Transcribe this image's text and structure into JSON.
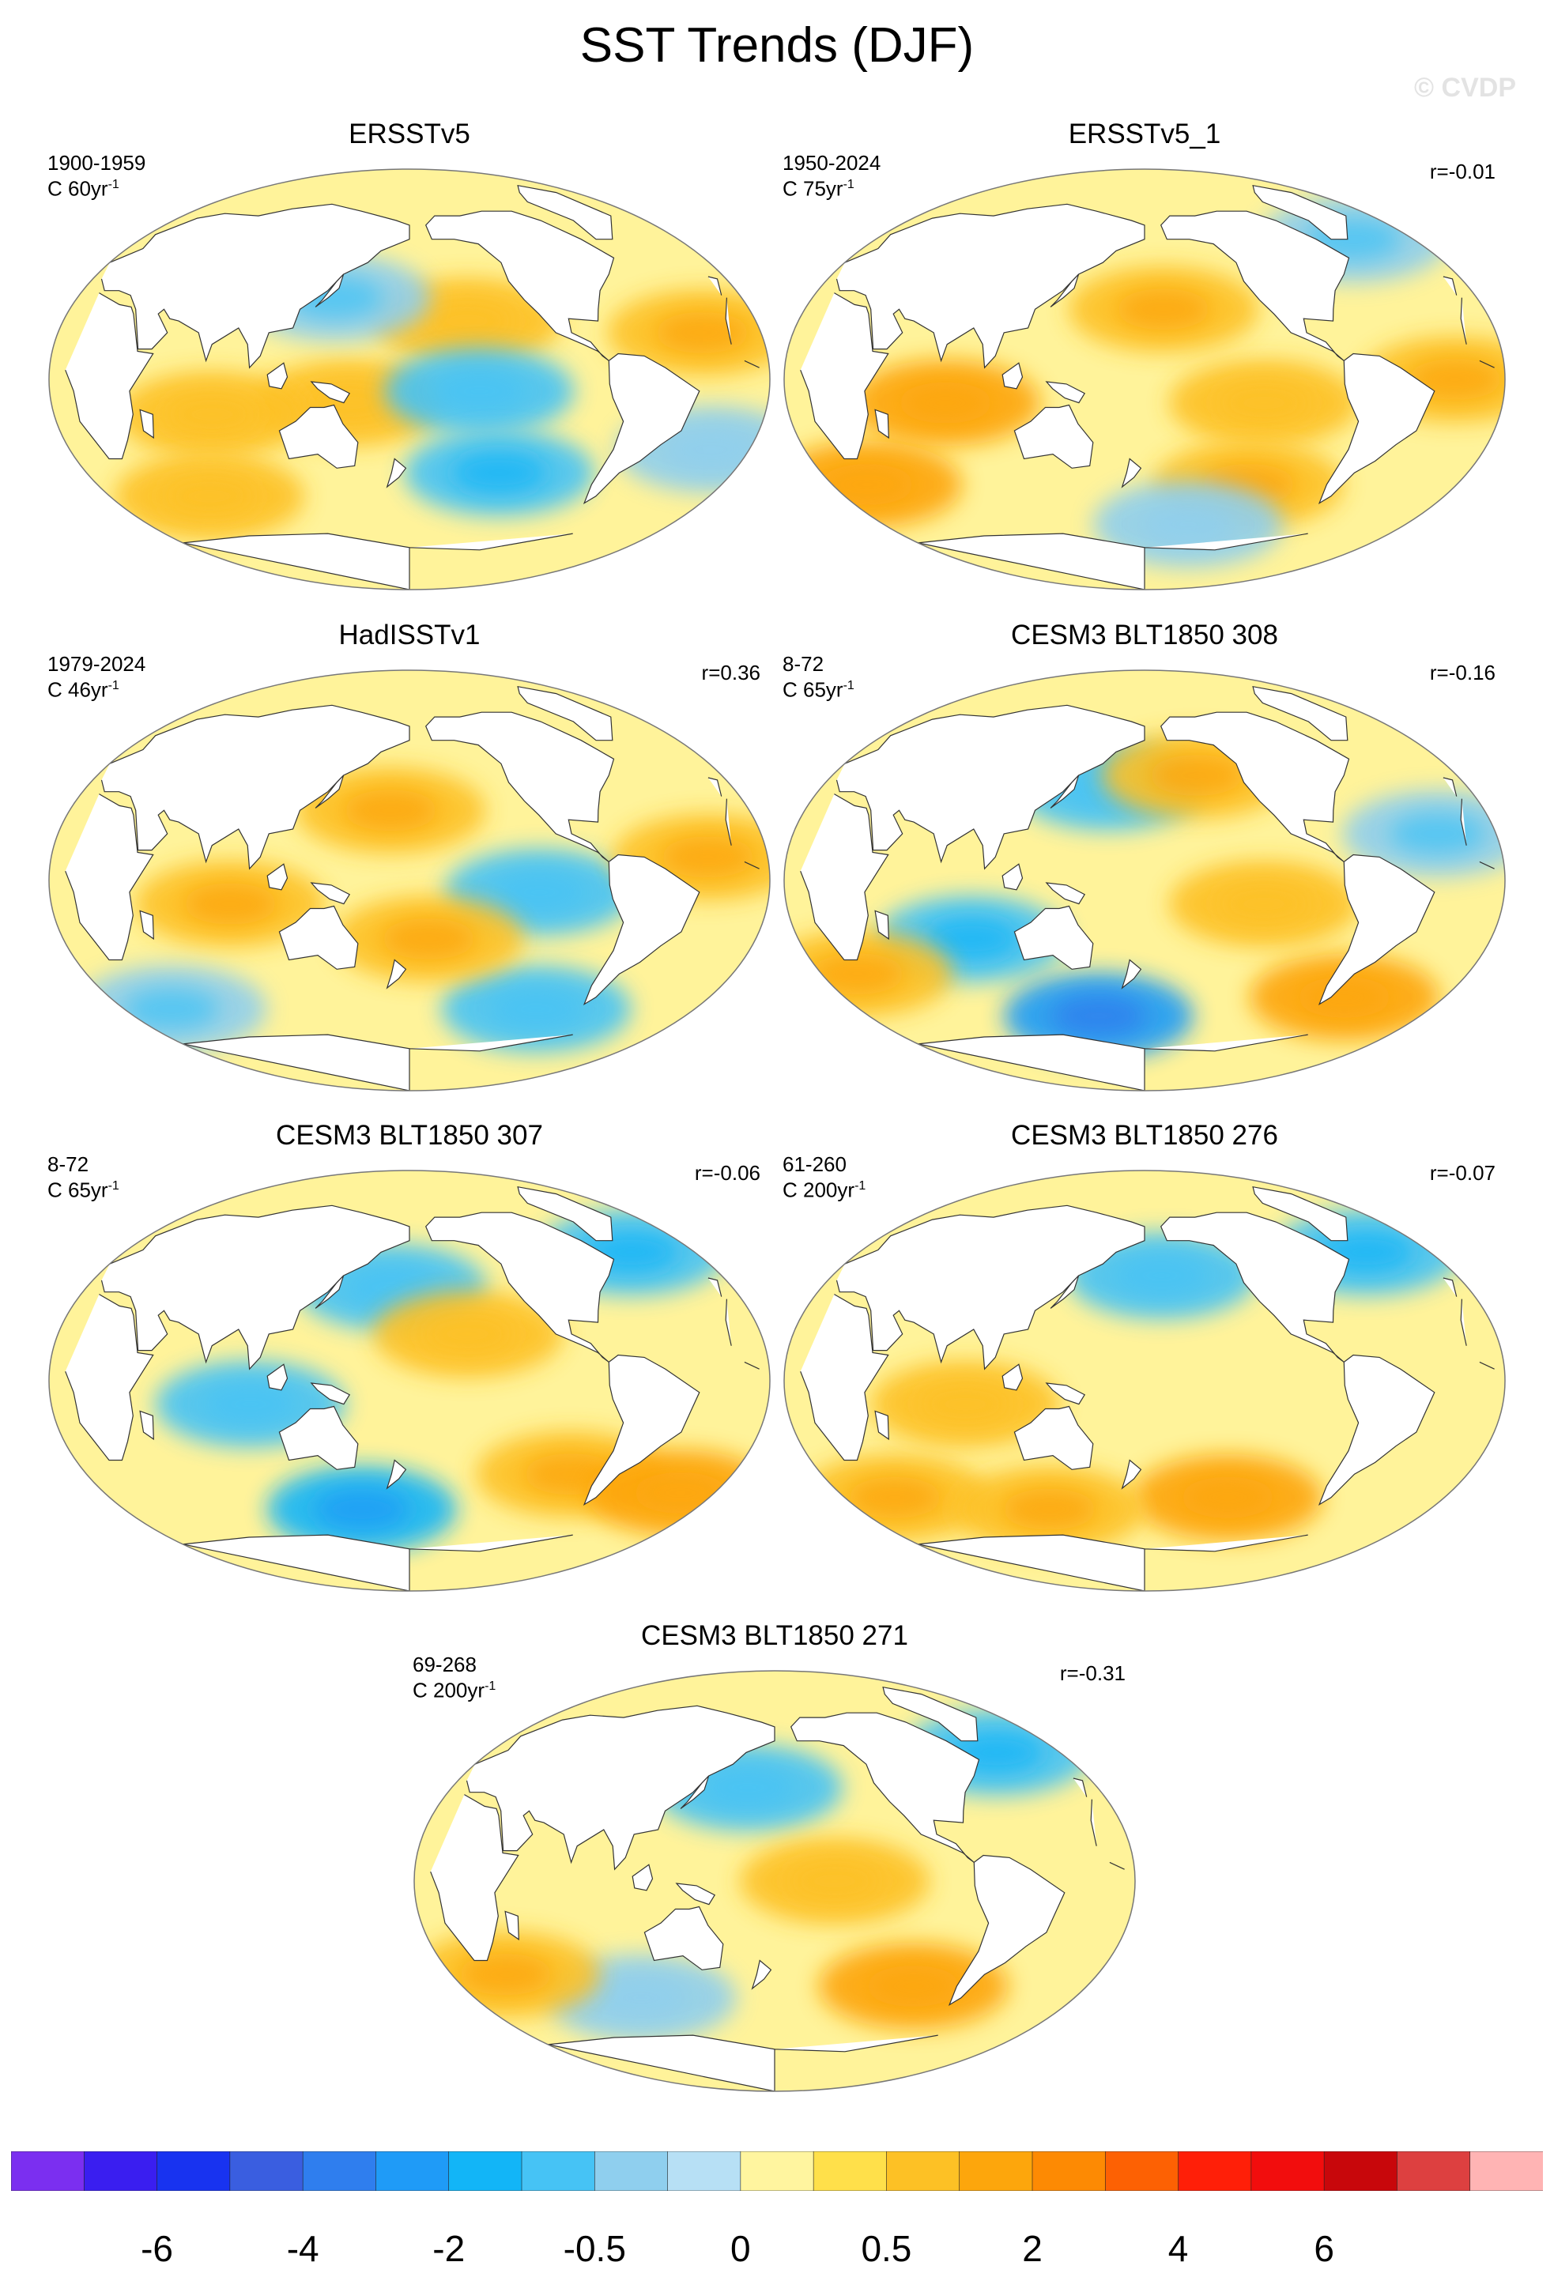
{
  "title": "SST Trends (DJF)",
  "watermark": "© CVDP",
  "unit_prefix": "C ",
  "unit_suffix": "yr",
  "unit_exp": "-1",
  "colors": {
    "land": "#ffffff",
    "coast": "#333333",
    "ocean_base": "#fff39a"
  },
  "chart_data": [
    {
      "type": "heatmap",
      "name": "ERSSTv5",
      "years": "1900-1959",
      "scale": "60",
      "r": "",
      "patches": [
        {
          "lon": -150,
          "lat": 25,
          "value": 0.7
        },
        {
          "lon": 150,
          "lat": -10,
          "value": 0.7
        },
        {
          "lon": -145,
          "lat": -5,
          "value": -0.5
        },
        {
          "lon": -130,
          "lat": -40,
          "value": -0.9
        },
        {
          "lon": -20,
          "lat": -30,
          "value": -0.3
        },
        {
          "lon": -30,
          "lat": 20,
          "value": 0.8
        },
        {
          "lon": 80,
          "lat": -15,
          "value": 0.7
        },
        {
          "lon": 140,
          "lat": 35,
          "value": -0.4
        },
        {
          "lon": 60,
          "lat": -50,
          "value": 0.7
        }
      ]
    },
    {
      "type": "heatmap",
      "name": "ERSSTv5_1",
      "years": "1950-2024",
      "scale": "75",
      "r": "r=-0.01",
      "patches": [
        {
          "lon": -170,
          "lat": 30,
          "value": 0.8
        },
        {
          "lon": -120,
          "lat": -10,
          "value": 0.7
        },
        {
          "lon": 80,
          "lat": -10,
          "value": 1.1
        },
        {
          "lon": -25,
          "lat": 0,
          "value": 1.0
        },
        {
          "lon": -120,
          "lat": -45,
          "value": 1.0
        },
        {
          "lon": -40,
          "lat": 60,
          "value": -0.4
        },
        {
          "lon": 20,
          "lat": -45,
          "value": 1.1
        },
        {
          "lon": -150,
          "lat": -62,
          "value": -0.2
        }
      ]
    },
    {
      "type": "heatmap",
      "name": "HadISSTv1",
      "years": "1979-2024",
      "scale": "46",
      "r": "r=0.36",
      "patches": [
        {
          "lon": 170,
          "lat": 30,
          "value": 0.9
        },
        {
          "lon": -115,
          "lat": -5,
          "value": -0.7
        },
        {
          "lon": 90,
          "lat": -10,
          "value": 0.9
        },
        {
          "lon": -30,
          "lat": 10,
          "value": 1.0
        },
        {
          "lon": -100,
          "lat": -55,
          "value": -0.6
        },
        {
          "lon": 30,
          "lat": -55,
          "value": -0.4
        },
        {
          "lon": -170,
          "lat": -25,
          "value": 0.8
        }
      ]
    },
    {
      "type": "heatmap",
      "name": "CESM3 BLT1850 308",
      "years": "8-72",
      "scale": "65",
      "r": "r=-0.16",
      "patches": [
        {
          "lon": 160,
          "lat": 40,
          "value": -0.7
        },
        {
          "lon": -150,
          "lat": 45,
          "value": 0.8
        },
        {
          "lon": 90,
          "lat": -25,
          "value": -0.8
        },
        {
          "lon": 150,
          "lat": -58,
          "value": -2.2
        },
        {
          "lon": -60,
          "lat": -50,
          "value": 1.2
        },
        {
          "lon": -120,
          "lat": -10,
          "value": 0.7
        },
        {
          "lon": -30,
          "lat": 20,
          "value": -0.4
        },
        {
          "lon": 20,
          "lat": -40,
          "value": 0.9
        }
      ]
    },
    {
      "type": "heatmap",
      "name": "CESM3 BLT1850 307",
      "years": "8-72",
      "scale": "65",
      "r": "r=-0.06",
      "patches": [
        {
          "lon": 170,
          "lat": 40,
          "value": -0.5
        },
        {
          "lon": 100,
          "lat": -10,
          "value": -0.5
        },
        {
          "lon": 150,
          "lat": -55,
          "value": -1.9
        },
        {
          "lon": -90,
          "lat": -40,
          "value": 1.0
        },
        {
          "lon": -20,
          "lat": -48,
          "value": 1.2
        },
        {
          "lon": -40,
          "lat": 55,
          "value": -0.8
        },
        {
          "lon": -150,
          "lat": 20,
          "value": 0.6
        }
      ]
    },
    {
      "type": "heatmap",
      "name": "CESM3 BLT1850 276",
      "years": "61-260",
      "scale": "200",
      "r": "r=-0.07",
      "patches": [
        {
          "lon": -170,
          "lat": 45,
          "value": -0.7
        },
        {
          "lon": -130,
          "lat": -50,
          "value": 1.4
        },
        {
          "lon": 30,
          "lat": -50,
          "value": 1.0
        },
        {
          "lon": -40,
          "lat": 55,
          "value": -0.9
        },
        {
          "lon": 90,
          "lat": -10,
          "value": 0.6
        },
        {
          "lon": 120,
          "lat": -55,
          "value": 0.9
        }
      ]
    },
    {
      "type": "heatmap",
      "name": "CESM3 BLT1850 271",
      "years": "69-268",
      "scale": "200",
      "r": "r=-0.31",
      "patches": [
        {
          "lon": 165,
          "lat": 40,
          "value": -0.6
        },
        {
          "lon": -100,
          "lat": -45,
          "value": 1.1
        },
        {
          "lon": -40,
          "lat": 55,
          "value": -0.9
        },
        {
          "lon": -150,
          "lat": 0,
          "value": 0.6
        },
        {
          "lon": 100,
          "lat": -50,
          "value": -0.3
        },
        {
          "lon": 30,
          "lat": -40,
          "value": 0.8
        }
      ]
    }
  ],
  "colorbar": {
    "colors": [
      "#7b2ff0",
      "#3a1ef0",
      "#1833f0",
      "#3a5ee0",
      "#2f7eee",
      "#1f9bf7",
      "#12b5f7",
      "#46c3f5",
      "#8fcfee",
      "#b7e0f5",
      "#fff59f",
      "#ffe04a",
      "#fdc125",
      "#fda60c",
      "#fd8a03",
      "#fd6103",
      "#ff1f08",
      "#f20d0d",
      "#c8070b",
      "#dd4040",
      "#ffb4b4"
    ],
    "labels": [
      "-6",
      "-4",
      "-2",
      "-0.5",
      "0",
      "0.5",
      "2",
      "4",
      "6"
    ],
    "label_boundaries": [
      2,
      4,
      6,
      8,
      10,
      12,
      14,
      16,
      18
    ],
    "levels": [
      -8,
      -6,
      -5,
      -4,
      -3,
      -2,
      -1,
      -0.5,
      -0.2,
      0,
      0.2,
      0.5,
      1,
      2,
      3,
      4,
      5,
      6,
      7,
      8
    ]
  }
}
